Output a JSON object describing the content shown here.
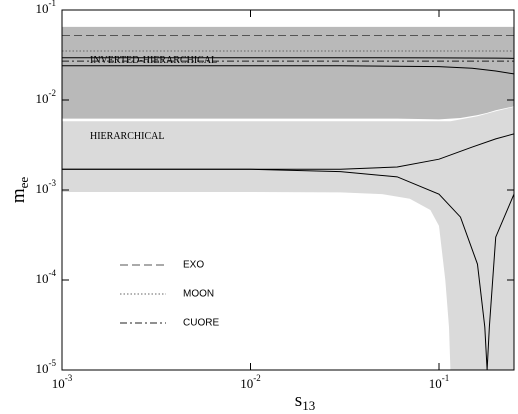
{
  "chart_data": {
    "type": "line",
    "log_x": true,
    "log_y": true,
    "xlabel": {
      "base": "s",
      "sub": "13"
    },
    "ylabel": {
      "base": "m",
      "sub": "ee"
    },
    "xlim": [
      0.001,
      0.25
    ],
    "ylim": [
      1e-05,
      0.1
    ],
    "xticks": [
      {
        "value": 0.001,
        "label": {
          "base": "10",
          "exp": "-3"
        }
      },
      {
        "value": 0.01,
        "label": {
          "base": "10",
          "exp": "-2"
        }
      },
      {
        "value": 0.1,
        "label": {
          "base": "10",
          "exp": "-1"
        }
      }
    ],
    "yticks": [
      {
        "value": 1e-05,
        "label": {
          "base": "10",
          "exp": "-5"
        }
      },
      {
        "value": 0.0001,
        "label": {
          "base": "10",
          "exp": "-4"
        }
      },
      {
        "value": 0.001,
        "label": {
          "base": "10",
          "exp": "-3"
        }
      },
      {
        "value": 0.01,
        "label": {
          "base": "10",
          "exp": "-2"
        }
      },
      {
        "value": 0.1,
        "label": {
          "base": "10",
          "exp": "-1"
        }
      }
    ],
    "bands": [
      {
        "name": "INVERTED-HIERARCHICAL",
        "color": "#b9b9b9",
        "x": [
          0.001,
          0.01,
          0.03,
          0.06,
          0.1,
          0.13,
          0.16,
          0.18,
          0.2,
          0.25
        ],
        "upper": [
          0.065,
          0.065,
          0.065,
          0.065,
          0.065,
          0.065,
          0.065,
          0.065,
          0.065,
          0.065
        ],
        "lower": [
          0.0062,
          0.0062,
          0.0062,
          0.0062,
          0.0061,
          0.0063,
          0.0068,
          0.0072,
          0.0077,
          0.0085
        ]
      },
      {
        "name": "HIERARCHICAL",
        "color": "#dadada",
        "x": [
          0.001,
          0.01,
          0.03,
          0.05,
          0.07,
          0.09,
          0.1,
          0.108,
          0.113,
          0.115,
          0.16,
          0.2,
          0.25
        ],
        "upper": [
          0.0058,
          0.0058,
          0.0058,
          0.0058,
          0.0058,
          0.0058,
          0.0058,
          0.0058,
          0.0058,
          0.0058,
          0.0066,
          0.0075,
          0.0084
        ],
        "lower": [
          0.00095,
          0.00095,
          0.00094,
          0.0009,
          0.0008,
          0.0006,
          0.0004,
          0.0001,
          3e-05,
          1e-05,
          1e-05,
          1e-05,
          1e-05
        ]
      }
    ],
    "series": [
      {
        "name": "EXO",
        "color": "#555555",
        "dash": "8,4",
        "x": [
          0.001,
          0.25
        ],
        "values": [
          0.052,
          0.052
        ]
      },
      {
        "name": "MOON",
        "color": "#666666",
        "dash": "1.5,2",
        "x": [
          0.001,
          0.25
        ],
        "values": [
          0.035,
          0.035
        ]
      },
      {
        "name": "CUORE",
        "color": "#222222",
        "dash": "7,3,2,3",
        "x": [
          0.001,
          0.25
        ],
        "values": [
          0.027,
          0.027
        ]
      },
      {
        "color": "#000000",
        "x": [
          0.001,
          0.03,
          0.1,
          0.2,
          0.25
        ],
        "values": [
          0.0295,
          0.0295,
          0.0294,
          0.0292,
          0.029
        ]
      },
      {
        "color": "#000000",
        "x": [
          0.001,
          0.03,
          0.1,
          0.15,
          0.2,
          0.25
        ],
        "values": [
          0.024,
          0.024,
          0.0235,
          0.0225,
          0.021,
          0.0195
        ]
      },
      {
        "color": "#000000",
        "x": [
          0.001,
          0.01,
          0.03,
          0.06,
          0.1,
          0.15,
          0.2,
          0.25
        ],
        "values": [
          0.0017,
          0.0017,
          0.0017,
          0.0018,
          0.0022,
          0.003,
          0.0037,
          0.0042
        ]
      },
      {
        "color": "#000000",
        "x": [
          0.001,
          0.01,
          0.03,
          0.06,
          0.1,
          0.13,
          0.16,
          0.175,
          0.18,
          0.185,
          0.2,
          0.25
        ],
        "values": [
          0.0017,
          0.0017,
          0.0016,
          0.0014,
          0.0009,
          0.0005,
          0.00015,
          3e-05,
          1e-05,
          3e-05,
          0.0003,
          0.0009
        ]
      }
    ]
  }
}
